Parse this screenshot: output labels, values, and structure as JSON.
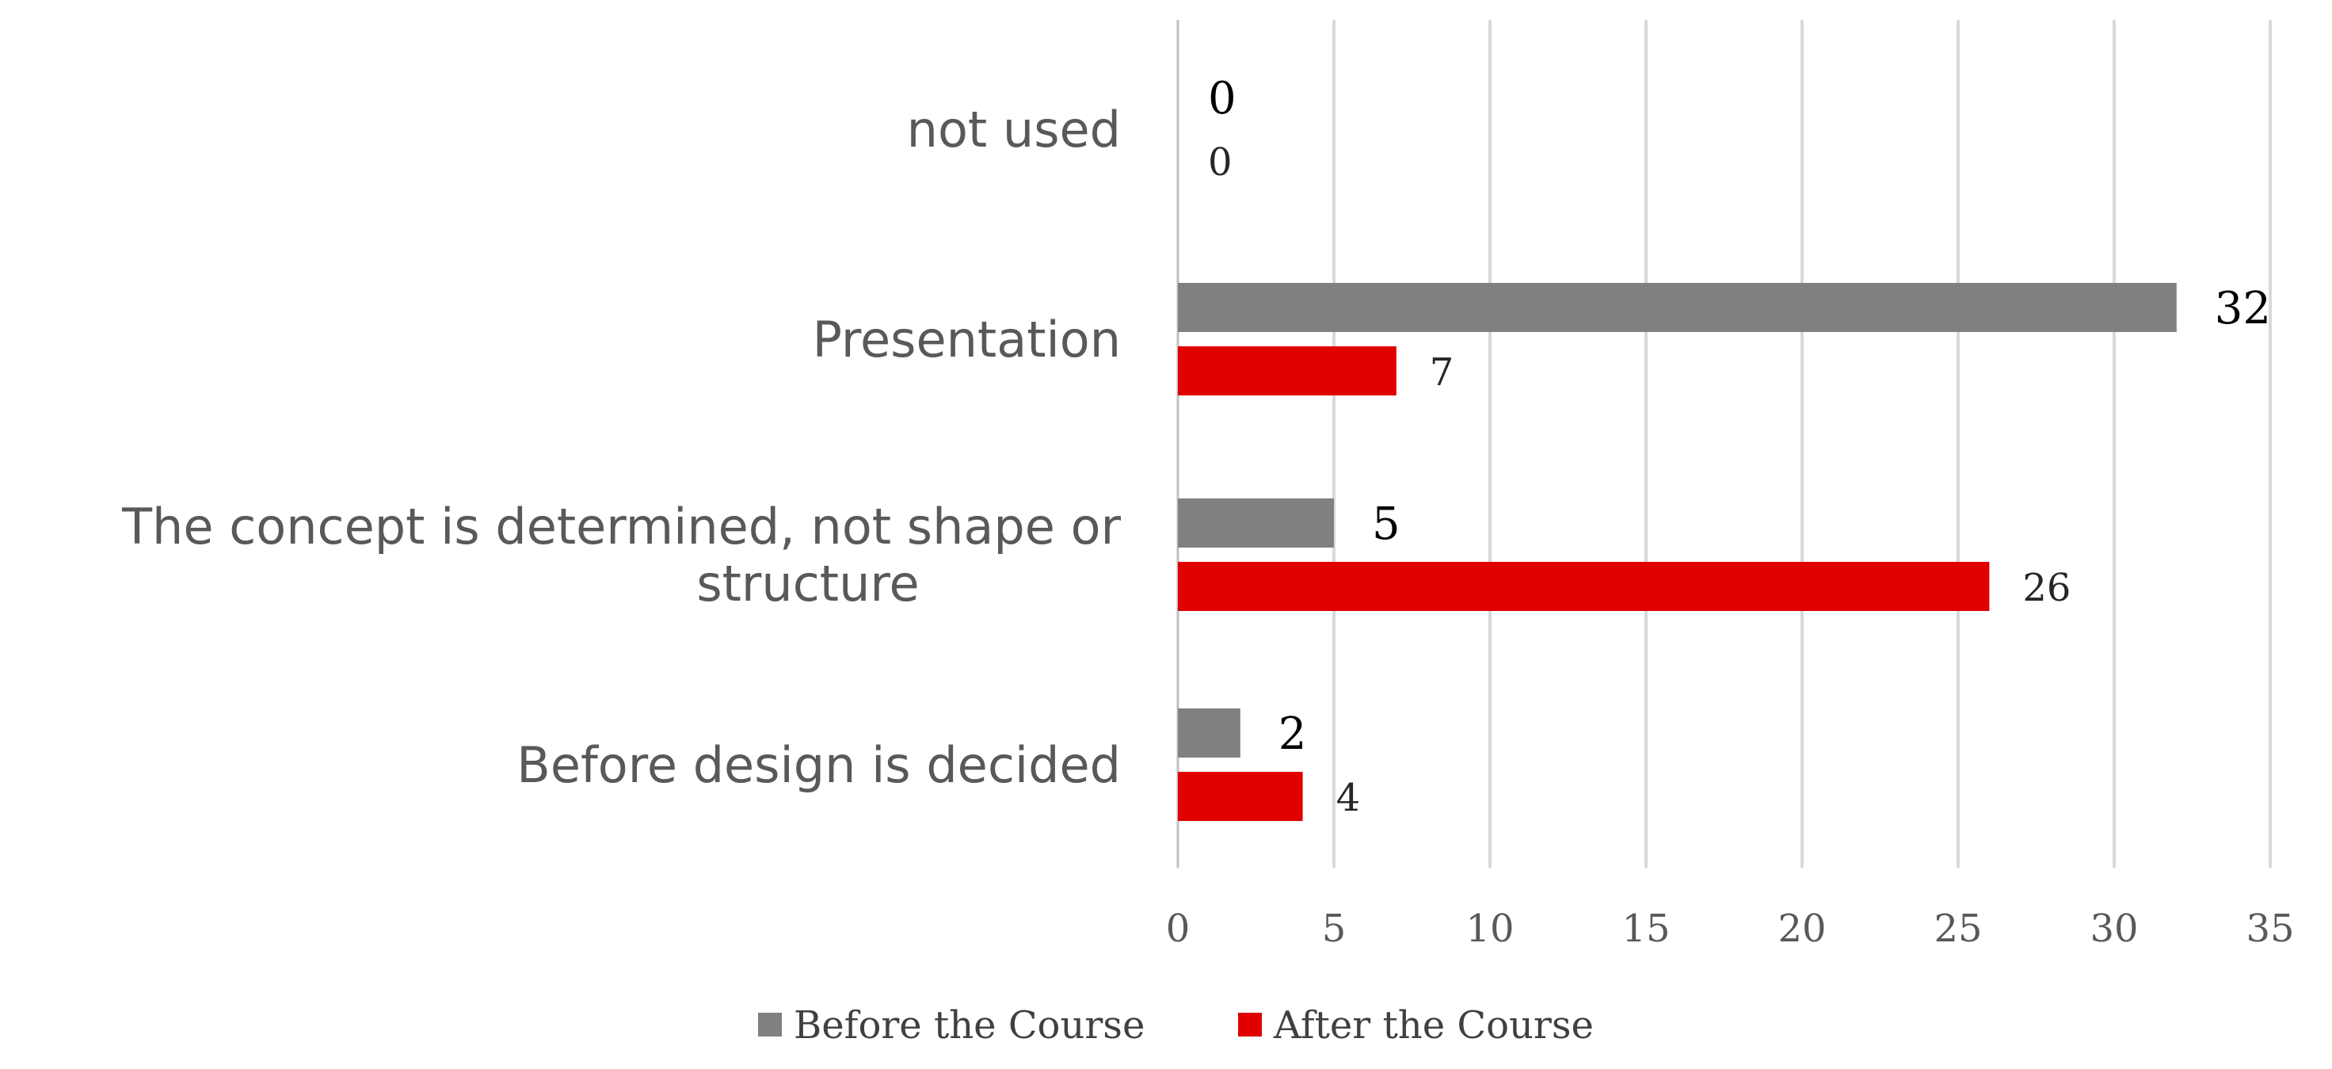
{
  "chart_data": {
    "type": "bar",
    "orientation": "horizontal",
    "categories": [
      "not used",
      "Presentation",
      "The concept is determined, not shape or structure",
      "Before design is decided"
    ],
    "category_lines": [
      [
        "not used"
      ],
      [
        "Presentation"
      ],
      [
        "The concept is determined, not shape or",
        "structure"
      ],
      [
        "Before design is decided"
      ]
    ],
    "series": [
      {
        "name": "Before the Course",
        "color": "#808080",
        "values": [
          0,
          32,
          5,
          2
        ]
      },
      {
        "name": "After the Course",
        "color": "#e00000",
        "values": [
          0,
          7,
          26,
          4
        ]
      }
    ],
    "xlim": [
      0,
      35
    ],
    "xticks": [
      0,
      5,
      10,
      15,
      20,
      25,
      30,
      35
    ],
    "grid": "vertical",
    "data_labels": true,
    "legend": "bottom",
    "title": "",
    "xlabel": "",
    "ylabel": ""
  }
}
